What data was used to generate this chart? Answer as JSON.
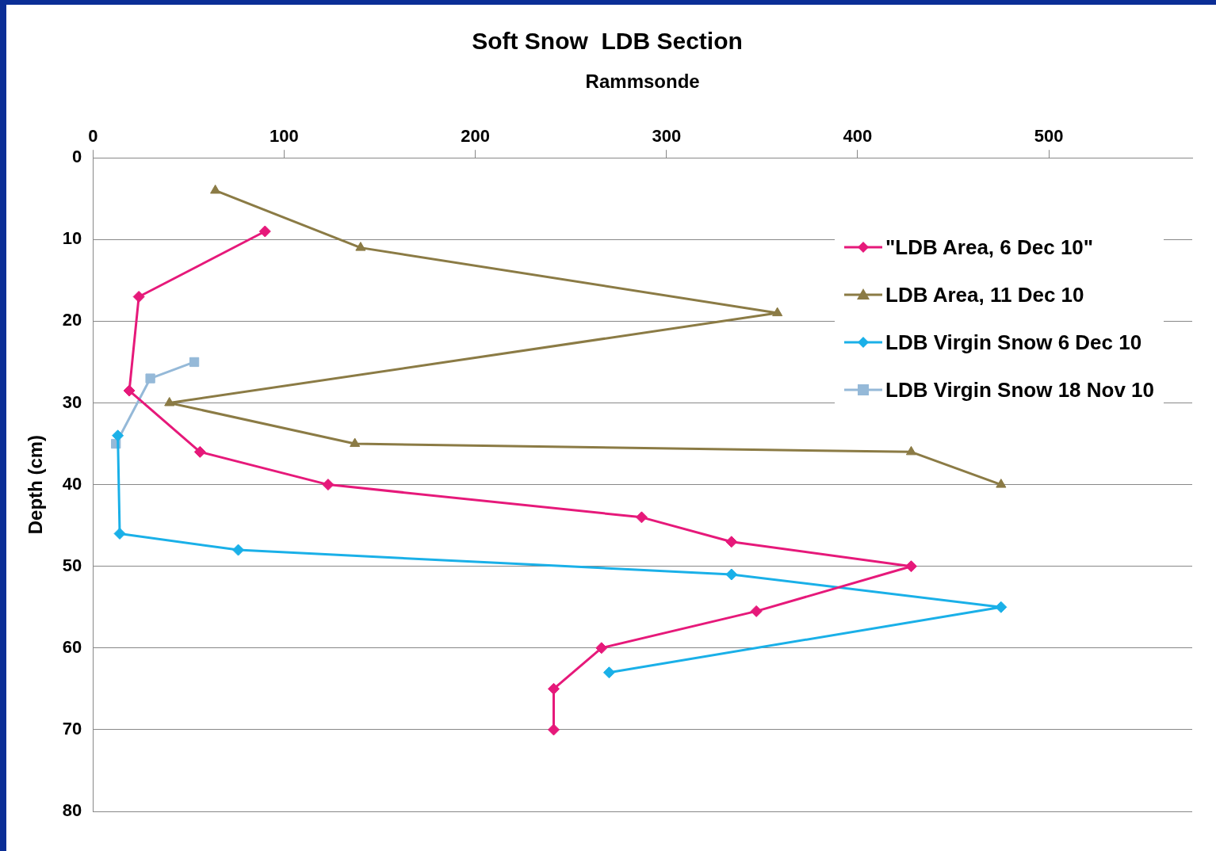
{
  "chart_data": {
    "type": "line",
    "title": "Soft Snow  LDB Section",
    "xlabel": "Rammsonde",
    "ylabel": "Depth (cm)",
    "xlim": [
      0,
      575
    ],
    "xticks": [
      0,
      100,
      200,
      300,
      400,
      500
    ],
    "ylim": [
      80,
      0
    ],
    "yticks": [
      0,
      10,
      20,
      30,
      40,
      50,
      60,
      70,
      80
    ],
    "grid": "y",
    "legend": "top right",
    "series": [
      {
        "name": "\"LDB Area, 6 Dec 10\"",
        "color": "#e6197a",
        "marker": "diamond",
        "x": [
          90,
          24,
          19,
          56,
          123,
          287,
          334,
          428,
          347,
          266,
          241,
          241
        ],
        "values": [
          9,
          17,
          28.5,
          36,
          40,
          44,
          47,
          50,
          55.5,
          60,
          65,
          70
        ]
      },
      {
        "name": "LDB Area, 11 Dec 10",
        "color": "#8b7b45",
        "marker": "triangle",
        "x": [
          64,
          140,
          358,
          40,
          137,
          428,
          475
        ],
        "values": [
          4,
          11,
          19,
          30,
          35,
          36,
          40
        ]
      },
      {
        "name": "LDB Virgin Snow 6 Dec 10",
        "color": "#1ab0e8",
        "marker": "diamond",
        "x": [
          13,
          14,
          76,
          334,
          475,
          270
        ],
        "values": [
          34,
          46,
          48,
          51,
          55,
          63
        ]
      },
      {
        "name": "LDB Virgin Snow 18 Nov 10",
        "color": "#95b9d8",
        "marker": "square",
        "x": [
          53,
          30,
          12
        ],
        "values": [
          25,
          27,
          35
        ]
      }
    ]
  }
}
